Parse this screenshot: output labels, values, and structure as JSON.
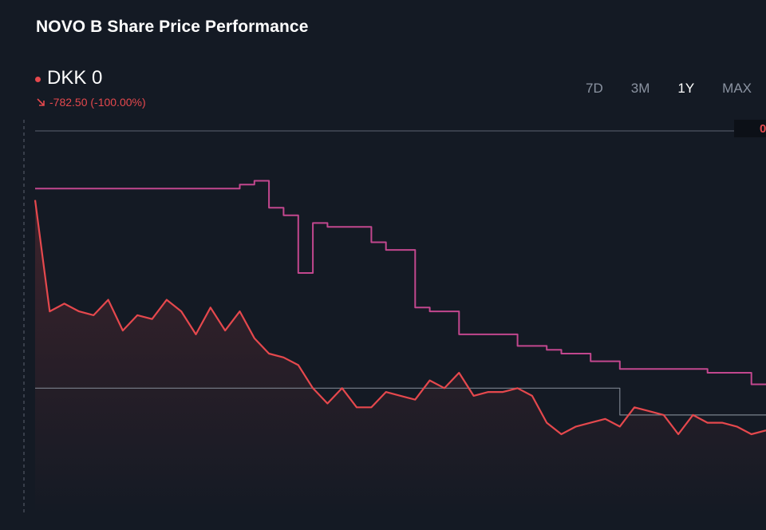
{
  "header": {
    "title": "NOVO B Share Price Performance",
    "price": "DKK 0",
    "change": "-782.50 (-100.00%)"
  },
  "range_tabs": [
    {
      "label": "7D",
      "active": false
    },
    {
      "label": "3M",
      "active": false
    },
    {
      "label": "1Y",
      "active": true
    },
    {
      "label": "MAX",
      "active": false
    }
  ],
  "colors": {
    "background": "#141a24",
    "price_line": "#e5484d",
    "benchmark_line": "#c2478e",
    "reference_line": "#7a818c",
    "inactive_tab": "#8b93a1"
  },
  "chart_data": {
    "type": "line",
    "y_axis_label": "0",
    "x": [
      0,
      2,
      4,
      6,
      8,
      10,
      12,
      14,
      16,
      18,
      20,
      22,
      24,
      26,
      28,
      30,
      32,
      34,
      36,
      38,
      40,
      42,
      44,
      46,
      48,
      50,
      52,
      54,
      56,
      58,
      60,
      62,
      64,
      66,
      68,
      70,
      72,
      74,
      76,
      78,
      80,
      82,
      84,
      86,
      88,
      90,
      92,
      94,
      96,
      98,
      100
    ],
    "series": [
      {
        "color": "#e5484d",
        "values": [
          82,
          53,
          55,
          53,
          52,
          56,
          48,
          52,
          51,
          56,
          53,
          47,
          54,
          48,
          53,
          46,
          42,
          41,
          39,
          33,
          29,
          33,
          28,
          28,
          32,
          31,
          30,
          35,
          33,
          37,
          31,
          32,
          32,
          33,
          31,
          24,
          21,
          23,
          24,
          25,
          23,
          28,
          27,
          26,
          21,
          26,
          24,
          24,
          23,
          21,
          22
        ]
      },
      {
        "color": "#c2478e",
        "values": [
          85,
          85,
          85,
          85,
          85,
          85,
          85,
          85,
          85,
          85,
          85,
          85,
          85,
          85,
          86,
          87,
          80,
          78,
          63,
          76,
          75,
          75,
          75,
          71,
          69,
          69,
          54,
          53,
          53,
          47,
          47,
          47,
          47,
          44,
          44,
          43,
          42,
          42,
          40,
          40,
          38,
          38,
          38,
          38,
          38,
          38,
          37,
          37,
          37,
          34,
          34
        ]
      },
      {
        "color": "#7a818c",
        "values": [
          33,
          33,
          33,
          33,
          33,
          33,
          33,
          33,
          33,
          33,
          33,
          33,
          33,
          33,
          33,
          33,
          33,
          33,
          33,
          33,
          33,
          33,
          33,
          33,
          33,
          33,
          33,
          33,
          33,
          33,
          33,
          33,
          33,
          33,
          33,
          33,
          33,
          33,
          33,
          33,
          26,
          26,
          26,
          26,
          26,
          26,
          26,
          26,
          26,
          26,
          26
        ]
      }
    ]
  }
}
